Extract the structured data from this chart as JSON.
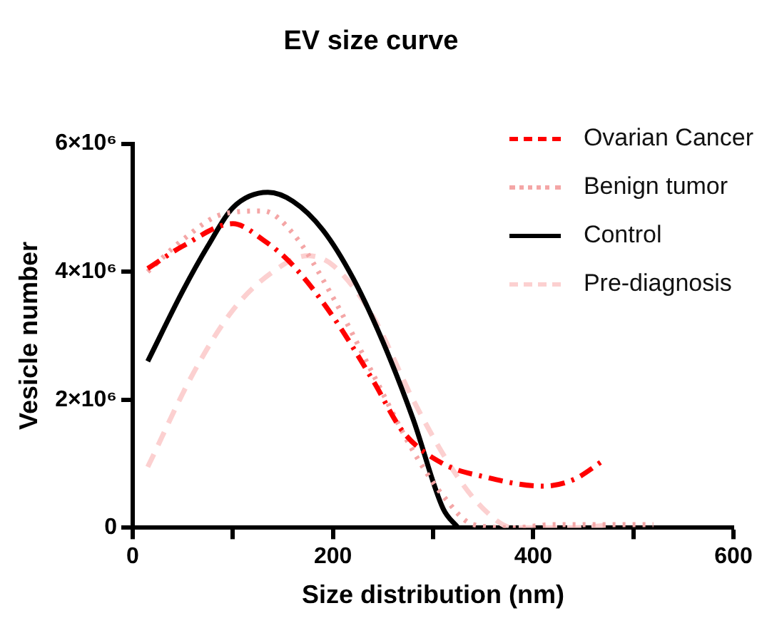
{
  "chart_data": {
    "type": "line",
    "title": "EV size curve",
    "xlabel": "Size distribution (nm)",
    "ylabel": "Vesicle number",
    "xlim": [
      0,
      600
    ],
    "xticks": [
      0,
      {
        "value": 100,
        "label": null
      },
      200,
      {
        "value": 300,
        "label": null
      },
      400,
      {
        "value": 500,
        "label": null
      },
      600
    ],
    "ylim": [
      0,
      6000000
    ],
    "yticks": [
      0,
      {
        "value": 2000000,
        "label": "2×10⁶"
      },
      {
        "value": 4000000,
        "label": "4×10⁶"
      },
      {
        "value": 6000000,
        "label": "6×10⁶"
      }
    ],
    "grid": false,
    "legend": "top right",
    "marker": "none",
    "series": [
      {
        "name": "Ovarian Cancer",
        "color": "#ff0000",
        "line_style": "dashdot",
        "x": [
          15,
          50,
          100,
          130,
          160,
          200,
          240,
          270,
          310,
          350,
          410,
          440,
          470
        ],
        "values": [
          4050000,
          4400000,
          4750000,
          4500000,
          4100000,
          3300000,
          2300000,
          1500000,
          1000000,
          800000,
          650000,
          750000,
          1050000
        ]
      },
      {
        "name": "Benign tumor",
        "color": "#f4a6a6",
        "line_style": "dotted",
        "x": [
          15,
          50,
          90,
          130,
          160,
          200,
          240,
          280,
          310,
          340,
          380,
          420,
          480,
          520
        ],
        "values": [
          4000000,
          4500000,
          4900000,
          4950000,
          4600000,
          3600000,
          2400000,
          1200000,
          500000,
          50000,
          0,
          50000,
          50000,
          50000
        ]
      },
      {
        "name": "Control",
        "color": "#000000",
        "line_style": "solid",
        "x": [
          15,
          50,
          75,
          100,
          135,
          160,
          190,
          220,
          250,
          280,
          310,
          325
        ],
        "values": [
          2600000,
          3700000,
          4400000,
          5000000,
          5240000,
          5100000,
          4650000,
          3900000,
          2900000,
          1700000,
          300000,
          0
        ]
      },
      {
        "name": "Pre-diagnosis",
        "color": "#fcd0d0",
        "line_style": "dashed",
        "x": [
          15,
          60,
          100,
          140,
          175,
          200,
          240,
          280,
          320,
          350,
          380,
          440,
          480
        ],
        "values": [
          950000,
          2400000,
          3400000,
          4000000,
          4250000,
          4100000,
          3300000,
          2000000,
          900000,
          300000,
          0,
          0,
          50000
        ]
      }
    ]
  }
}
